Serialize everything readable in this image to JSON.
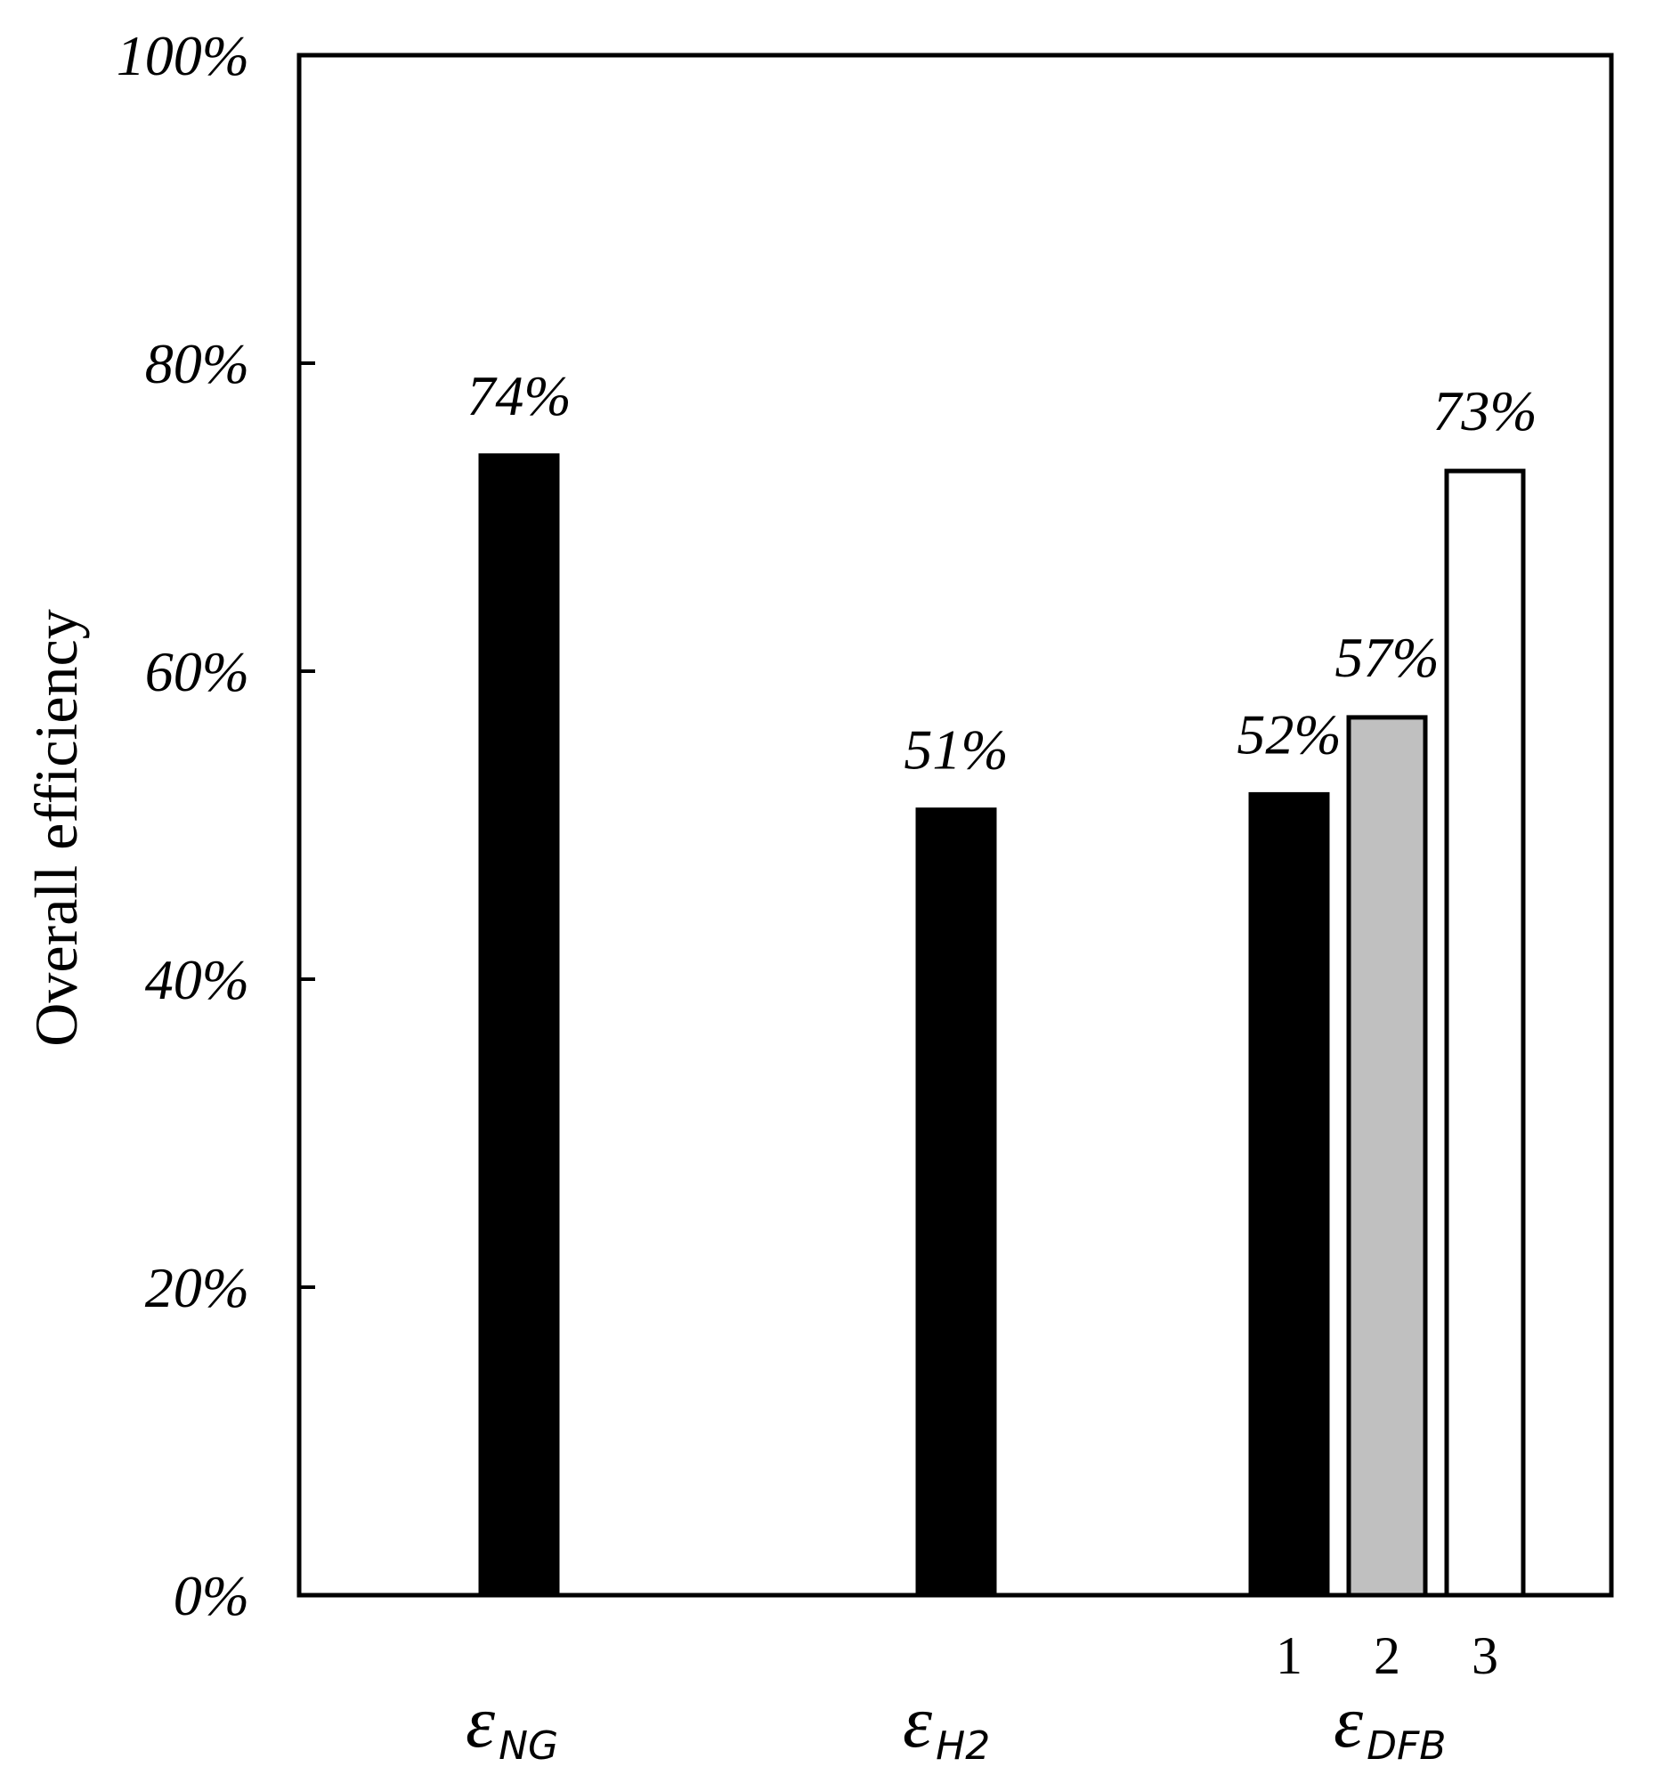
{
  "chart_data": {
    "type": "bar",
    "ylabel": "Overall efficiency",
    "ylim": [
      0,
      100
    ],
    "yticks": [
      "0%",
      "20%",
      "40%",
      "60%",
      "80%",
      "100%"
    ],
    "grid": false,
    "groups": [
      {
        "symbol": "ε",
        "subscript": "NG",
        "bars": [
          {
            "label": "",
            "value": 74,
            "display": "74%",
            "fill": "#000000"
          }
        ]
      },
      {
        "symbol": "ε",
        "subscript": "H2",
        "bars": [
          {
            "label": "",
            "value": 51,
            "display": "51%",
            "fill": "#000000"
          }
        ]
      },
      {
        "symbol": "ε",
        "subscript": "DFB",
        "bars": [
          {
            "label": "1",
            "value": 52,
            "display": "52%",
            "fill": "#000000"
          },
          {
            "label": "2",
            "value": 57,
            "display": "57%",
            "fill": "#c0c0c0"
          },
          {
            "label": "3",
            "value": 73,
            "display": "73%",
            "fill": "#ffffff"
          }
        ]
      }
    ]
  }
}
